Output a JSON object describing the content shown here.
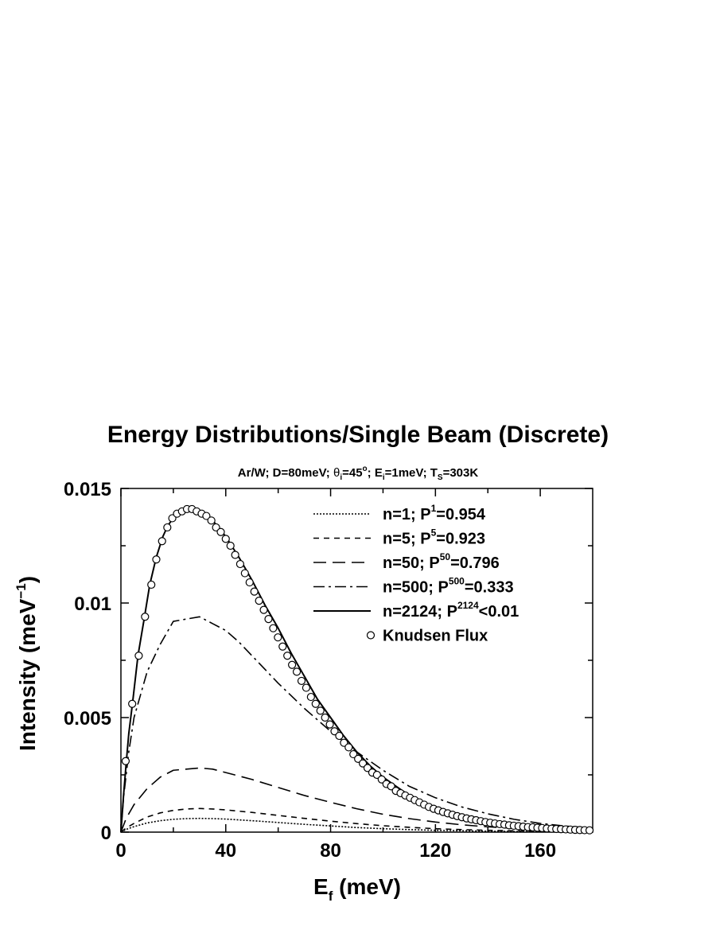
{
  "chart_data": {
    "type": "line",
    "title": "Energy Distributions/Single Beam (Discrete)",
    "subtitle": {
      "system": "Ar/W; D=80meV; ",
      "theta_sym": "θ",
      "theta_sub": "i",
      "theta_val": "=45",
      "theta_sup": "o",
      "sep1": "; E",
      "e_sub": "i",
      "e_val": "=1meV; T",
      "t_sub": "S",
      "t_val": "=303K"
    },
    "xlabel": {
      "main": "E",
      "sub": "f",
      "rest": " (meV)"
    },
    "ylabel": {
      "main": "Intensity (meV",
      "sup": "−1",
      "close": ")"
    },
    "xlim": [
      0,
      180
    ],
    "ylim": [
      0,
      0.015
    ],
    "xticks": [
      {
        "value": 0,
        "label": "0"
      },
      {
        "value": 40,
        "label": "40"
      },
      {
        "value": 80,
        "label": "80"
      },
      {
        "value": 120,
        "label": "120"
      },
      {
        "value": 160,
        "label": "160"
      }
    ],
    "yticks": [
      {
        "value": 0,
        "label": "0"
      },
      {
        "value": 0.005,
        "label": "0.005"
      },
      {
        "value": 0.01,
        "label": "0.01"
      },
      {
        "value": 0.015,
        "label": "0.015"
      }
    ],
    "series": [
      {
        "name": "n=1",
        "legend": {
          "pre": "n=1; P",
          "sup": "1",
          "post": "=0.954"
        },
        "style": "dotted",
        "x": [
          0,
          2,
          5,
          10,
          15,
          20,
          25,
          30,
          35,
          40,
          50,
          60,
          70,
          80,
          90,
          100,
          110,
          120,
          130,
          140,
          150,
          160,
          170,
          180
        ],
        "y": [
          0,
          0.00012,
          0.00024,
          0.0004,
          0.0005,
          0.00056,
          0.00059,
          0.0006,
          0.00059,
          0.00057,
          0.0005,
          0.00042,
          0.00034,
          0.00027,
          0.0002,
          0.00015,
          0.00011,
          8e-05,
          6e-05,
          4e-05,
          3e-05,
          2e-05,
          1.5e-05,
          1e-05
        ]
      },
      {
        "name": "n=5",
        "legend": {
          "pre": "n=5; P",
          "sup": "5",
          "post": "=0.923"
        },
        "style": "short-dash",
        "x": [
          0,
          2,
          5,
          10,
          15,
          20,
          25,
          30,
          35,
          40,
          50,
          60,
          70,
          80,
          90,
          100,
          110,
          120,
          130,
          140,
          150,
          160,
          170,
          180
        ],
        "y": [
          0,
          0.00018,
          0.00038,
          0.00066,
          0.00084,
          0.00095,
          0.00101,
          0.00103,
          0.00101,
          0.00097,
          0.00086,
          0.00073,
          0.0006,
          0.00048,
          0.00037,
          0.00028,
          0.00021,
          0.00015,
          0.00011,
          8e-05,
          6e-05,
          4e-05,
          3e-05,
          2e-05
        ]
      },
      {
        "name": "n=50",
        "legend": {
          "pre": "n=50; P",
          "sup": "50",
          "post": "=0.796"
        },
        "style": "long-dash",
        "x": [
          0,
          2,
          5,
          10,
          15,
          20,
          25,
          30,
          35,
          40,
          50,
          60,
          70,
          80,
          90,
          100,
          110,
          120,
          130,
          140,
          150,
          160,
          170,
          180
        ],
        "y": [
          0,
          0.0006,
          0.0012,
          0.0019,
          0.0024,
          0.0027,
          0.00275,
          0.0028,
          0.00275,
          0.0026,
          0.0023,
          0.00195,
          0.0016,
          0.0013,
          0.00102,
          0.00078,
          0.00059,
          0.00044,
          0.00032,
          0.00023,
          0.00017,
          0.00012,
          9e-05,
          6e-05
        ]
      },
      {
        "name": "n=500",
        "legend": {
          "pre": "n=500; P",
          "sup": "500",
          "post": "=0.333"
        },
        "style": "dash-dot",
        "x": [
          0,
          1,
          3,
          5,
          8,
          10,
          15,
          20,
          25,
          30,
          35,
          40,
          45,
          50,
          60,
          70,
          80,
          90,
          100,
          110,
          120,
          130,
          140,
          150,
          160,
          170,
          180
        ],
        "y": [
          0,
          0.0015,
          0.0035,
          0.005,
          0.0062,
          0.007,
          0.0082,
          0.0092,
          0.0093,
          0.0094,
          0.0091,
          0.0088,
          0.0083,
          0.0077,
          0.0065,
          0.0054,
          0.0044,
          0.0035,
          0.0027,
          0.002,
          0.0015,
          0.0011,
          0.0008,
          0.00056,
          0.00038,
          0.00026,
          0.00018
        ]
      },
      {
        "name": "n=2124",
        "legend": {
          "pre": "n=2124; P",
          "sup": "2124",
          "post": "<0.01"
        },
        "style": "solid",
        "x": [
          0,
          1,
          2,
          3,
          4.5,
          6.5,
          9,
          11,
          13.5,
          16,
          18,
          20,
          22,
          24,
          26,
          28,
          30,
          32,
          35,
          40,
          45,
          50,
          55,
          60,
          65,
          70,
          75,
          80,
          85,
          90,
          95,
          100,
          105,
          110,
          115,
          120,
          125,
          130,
          135,
          140,
          145,
          150,
          155,
          160,
          165,
          170,
          175,
          180
        ],
        "y": [
          0,
          0.0016,
          0.003,
          0.0043,
          0.0057,
          0.0077,
          0.0094,
          0.0108,
          0.012,
          0.0129,
          0.0134,
          0.0137,
          0.0139,
          0.01405,
          0.0141,
          0.0141,
          0.01405,
          0.0139,
          0.0136,
          0.0129,
          0.012,
          0.011,
          0.0099,
          0.0089,
          0.0078,
          0.0068,
          0.0058,
          0.005,
          0.0042,
          0.0035,
          0.0029,
          0.0024,
          0.002,
          0.0016,
          0.0013,
          0.00108,
          0.00088,
          0.00072,
          0.00058,
          0.00047,
          0.00038,
          0.00031,
          0.00025,
          0.0002,
          0.00016,
          0.00013,
          0.0001,
          8e-05
        ]
      }
    ],
    "markers": {
      "name": "Knudsen Flux",
      "legend": {
        "pre": "Knudsen Flux",
        "sup": "",
        "post": ""
      },
      "style": "open-circle",
      "x": [
        1.8,
        4.3,
        6.8,
        9.2,
        11.6,
        13.5,
        15.7,
        17.7,
        19.6,
        21.4,
        23.3,
        25.2,
        27.1,
        28.9,
        30.8,
        32.6,
        34.5,
        36.3,
        38.1,
        40.0,
        41.8,
        43.6,
        45.5,
        47.3,
        49.1,
        50.9,
        52.7,
        54.5,
        56.3,
        58.1,
        59.9,
        61.7,
        63.5,
        65.3,
        67.1,
        68.9,
        70.7,
        72.5,
        74.3,
        76.1,
        77.9,
        79.7,
        81.5,
        83.3,
        85.1,
        86.9,
        88.7,
        90.5,
        92.3,
        94.1,
        95.9,
        97.7,
        99.5,
        101.3,
        103.1,
        104.9,
        106.7,
        108.5,
        110.3,
        112.1,
        113.9,
        115.7,
        117.5,
        119.3,
        121.1,
        122.9,
        124.7,
        126.5,
        128.3,
        130.1,
        131.9,
        133.7,
        135.5,
        137.3,
        139.1,
        140.9,
        142.7,
        144.5,
        146.3,
        148.1,
        149.9,
        151.7,
        153.5,
        155.3,
        157.1,
        158.9,
        160.7,
        162.5,
        164.3,
        166.1,
        167.9,
        169.7,
        171.5,
        173.3,
        175.1,
        176.9,
        178.8
      ],
      "y": [
        0.0031,
        0.0056,
        0.0077,
        0.0094,
        0.0108,
        0.0119,
        0.0127,
        0.0133,
        0.0137,
        0.0139,
        0.014,
        0.0141,
        0.0141,
        0.014,
        0.0139,
        0.0138,
        0.0136,
        0.0133,
        0.0131,
        0.0128,
        0.0125,
        0.0121,
        0.0117,
        0.0113,
        0.0109,
        0.0105,
        0.0101,
        0.0097,
        0.0093,
        0.0089,
        0.0085,
        0.0081,
        0.0077,
        0.0073,
        0.007,
        0.0066,
        0.0063,
        0.0059,
        0.0056,
        0.0053,
        0.005,
        0.0047,
        0.0044,
        0.0042,
        0.0039,
        0.0037,
        0.0034,
        0.0032,
        0.003,
        0.0028,
        0.0026,
        0.0025,
        0.0023,
        0.0021,
        0.002,
        0.0018,
        0.0017,
        0.0016,
        0.0015,
        0.0014,
        0.0013,
        0.0012,
        0.0011,
        0.00102,
        0.00095,
        0.00088,
        0.00082,
        0.00076,
        0.0007,
        0.00065,
        0.0006,
        0.00056,
        0.00052,
        0.00048,
        0.00044,
        0.00041,
        0.00038,
        0.00035,
        0.00033,
        0.0003,
        0.00028,
        0.00026,
        0.00024,
        0.00022,
        0.00021,
        0.00019,
        0.00018,
        0.00016,
        0.00015,
        0.00014,
        0.00013,
        0.00012,
        0.00011,
        0.0001,
        9e-05,
        8.5e-05,
        8e-05
      ]
    }
  }
}
